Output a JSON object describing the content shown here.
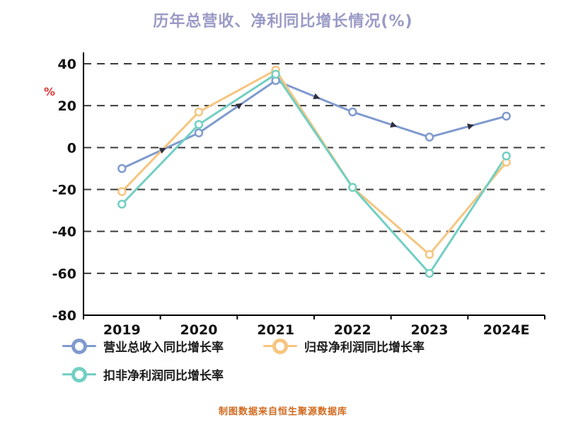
{
  "title": "历年总营收、净利同比增长情况(%)",
  "footer": "制图数据来自恒生聚源数据库",
  "chart_data": {
    "type": "line",
    "title": "历年总营收、净利同比增长情况(%)",
    "categories": [
      "2019",
      "2020",
      "2021",
      "2022",
      "2023",
      "2024E"
    ],
    "series": [
      {
        "name": "营业总收入同比增长率",
        "color": "#7f9ace",
        "values": [
          -10,
          7,
          32,
          17,
          5,
          15
        ]
      },
      {
        "name": "归母净利润同比增长率",
        "color": "#f6c57f",
        "values": [
          -21,
          17,
          37,
          -19,
          -51,
          -7
        ]
      },
      {
        "name": "扣非净利润同比增长率",
        "color": "#72cfc3",
        "values": [
          -27,
          11,
          35,
          -19,
          -60,
          -4
        ]
      }
    ],
    "ylabel": "%",
    "ylabel_color": "#e03535",
    "ylim": [
      -80,
      40
    ],
    "yticks": [
      40,
      20,
      0,
      -20,
      -40,
      -60,
      -80
    ],
    "grid": "dashed-horizontal",
    "legend_position": "bottom",
    "marker": "open-circle",
    "direction_arrows_on_series": 0
  }
}
